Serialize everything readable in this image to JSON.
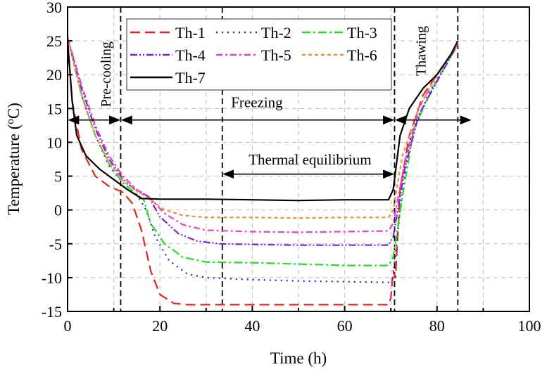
{
  "chart_data": {
    "type": "line",
    "xlabel": "Time (h)",
    "ylabel": "Temperature (",
    "ylabel_sup": "o",
    "ylabel_end": "C)",
    "xlim": [
      0,
      100
    ],
    "ylim": [
      -15,
      30
    ],
    "xticks": [
      0,
      20,
      40,
      60,
      80,
      100
    ],
    "yticks": [
      -15,
      -10,
      -5,
      0,
      5,
      10,
      15,
      20,
      25,
      30
    ],
    "grid": true,
    "legend_position": "top",
    "phase_lines": [
      11.5,
      33.5,
      70.8,
      84.5
    ],
    "annotations": {
      "precooling": "Pre-cooling",
      "freezing": "Freezing",
      "thermal_equilibrium": "Thermal equilibrium",
      "thawing": "Thawing"
    },
    "series": [
      {
        "name": "Th-1",
        "color": "#e8231f",
        "style": "dash",
        "x": [
          0,
          1,
          3,
          6,
          9,
          12,
          14,
          16,
          18,
          20,
          23,
          26,
          40,
          60,
          69.5,
          70,
          70.5,
          71,
          72,
          74,
          77,
          80,
          84.5
        ],
        "y": [
          25,
          16,
          9,
          5,
          3.5,
          2.6,
          1,
          -3,
          -9,
          -12.5,
          -13.8,
          -14,
          -14,
          -14,
          -14,
          -13,
          -9,
          -10,
          3,
          11,
          17,
          20,
          24.5
        ]
      },
      {
        "name": "Th-2",
        "color": "#1f1fd0",
        "style": "dot",
        "x": [
          0,
          3,
          6,
          9,
          12,
          15,
          17,
          19,
          22,
          26,
          30,
          40,
          50,
          60,
          69.5,
          70.5,
          72,
          74,
          78,
          84.5
        ],
        "y": [
          25.5,
          17,
          11,
          6.5,
          4,
          2.3,
          0,
          -4,
          -7.5,
          -9.5,
          -10,
          -10.3,
          -10.5,
          -10.6,
          -10.7,
          -10,
          0,
          10,
          17,
          24.5
        ]
      },
      {
        "name": "Th-3",
        "color": "#22dd22",
        "style": "dashdot",
        "x": [
          0,
          3,
          6,
          9,
          12,
          15,
          16.5,
          18,
          21,
          25,
          30,
          40,
          50,
          60,
          69.5,
          70.5,
          72.5,
          75,
          79,
          84.5
        ],
        "y": [
          25.5,
          17,
          11,
          6.8,
          4,
          2.3,
          1.5,
          -2,
          -5,
          -7,
          -7.7,
          -7.8,
          -8,
          -8.2,
          -8.2,
          -7,
          2,
          12,
          18,
          24.5
        ]
      },
      {
        "name": "Th-4",
        "color": "#7a1fe0",
        "style": "dashdotdot",
        "x": [
          0,
          3,
          6,
          9,
          12,
          15,
          17.5,
          20,
          24,
          28,
          33,
          40,
          50,
          60,
          69.5,
          70.5,
          73,
          76,
          80,
          84.5
        ],
        "y": [
          25.5,
          18,
          12,
          7.5,
          4.5,
          2.8,
          2,
          -1,
          -3.5,
          -4.6,
          -5,
          -5.1,
          -5.2,
          -5.2,
          -5.2,
          -4,
          6,
          14,
          19,
          24.5
        ]
      },
      {
        "name": "Th-5",
        "color": "#e83fbf",
        "style": "dashdot2",
        "x": [
          0,
          3,
          6,
          9,
          12,
          15,
          17.5,
          21,
          25,
          30,
          40,
          50,
          60,
          69.5,
          70.5,
          73,
          76,
          80,
          84.5
        ],
        "y": [
          25.5,
          18.5,
          12.5,
          8,
          5,
          3,
          2,
          -0.5,
          -2.2,
          -3,
          -3.2,
          -3.3,
          -3.2,
          -3.1,
          -2,
          7,
          15,
          20,
          24.5
        ]
      },
      {
        "name": "Th-6",
        "color": "#f08a3a",
        "style": "shortdash",
        "x": [
          0,
          3,
          6,
          9,
          12,
          15,
          18,
          21,
          25,
          30,
          40,
          50,
          60,
          69.5,
          70.5,
          72.5,
          76,
          80,
          84.5
        ],
        "y": [
          25.5,
          17,
          11,
          7,
          4.3,
          2.8,
          1.5,
          0,
          -0.8,
          -1.1,
          -1.1,
          -1.2,
          -1.1,
          -1.1,
          0,
          8,
          15,
          20,
          24.5
        ]
      },
      {
        "name": "Th-7",
        "color": "#000000",
        "style": "solid",
        "x": [
          0,
          1,
          2,
          4,
          7,
          10,
          13,
          16,
          20,
          30,
          40,
          50,
          60,
          69.5,
          70.5,
          72,
          74,
          77,
          80,
          83,
          84.5
        ],
        "y": [
          25,
          16,
          11,
          8,
          6,
          4.5,
          3,
          1.7,
          1.6,
          1.6,
          1.5,
          1.4,
          1.5,
          1.5,
          3,
          11,
          15,
          18,
          20,
          23,
          25
        ]
      }
    ]
  }
}
